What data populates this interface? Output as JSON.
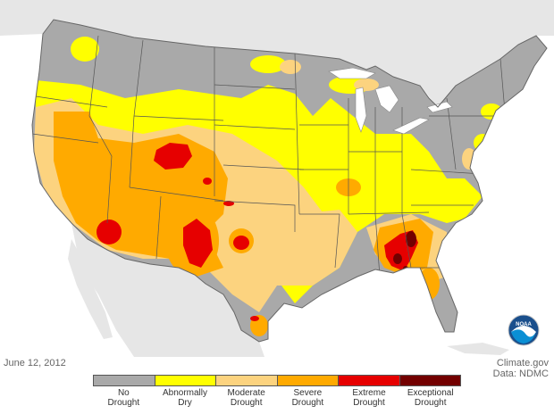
{
  "date": "June 12, 2012",
  "credit": {
    "line1": "Climate.gov",
    "line2": "Data: NDMC"
  },
  "logo": {
    "text": "NOAA",
    "icon": "noaa-logo-icon"
  },
  "legend": {
    "categories": [
      {
        "line1": "No",
        "line2": "Drought",
        "color": "#a9a9a9"
      },
      {
        "line1": "Abnormally",
        "line2": "Dry",
        "color": "#ffff00"
      },
      {
        "line1": "Moderate",
        "line2": "Drought",
        "color": "#fcd37f"
      },
      {
        "line1": "Severe",
        "line2": "Drought",
        "color": "#ffaa00"
      },
      {
        "line1": "Extreme",
        "line2": "Drought",
        "color": "#e60000"
      },
      {
        "line1": "Exceptional",
        "line2": "Drought",
        "color": "#730000"
      }
    ]
  },
  "colors": {
    "ocean": "#ffffff",
    "surrounding_land": "#e6e6e6",
    "state_border": "#555555"
  }
}
